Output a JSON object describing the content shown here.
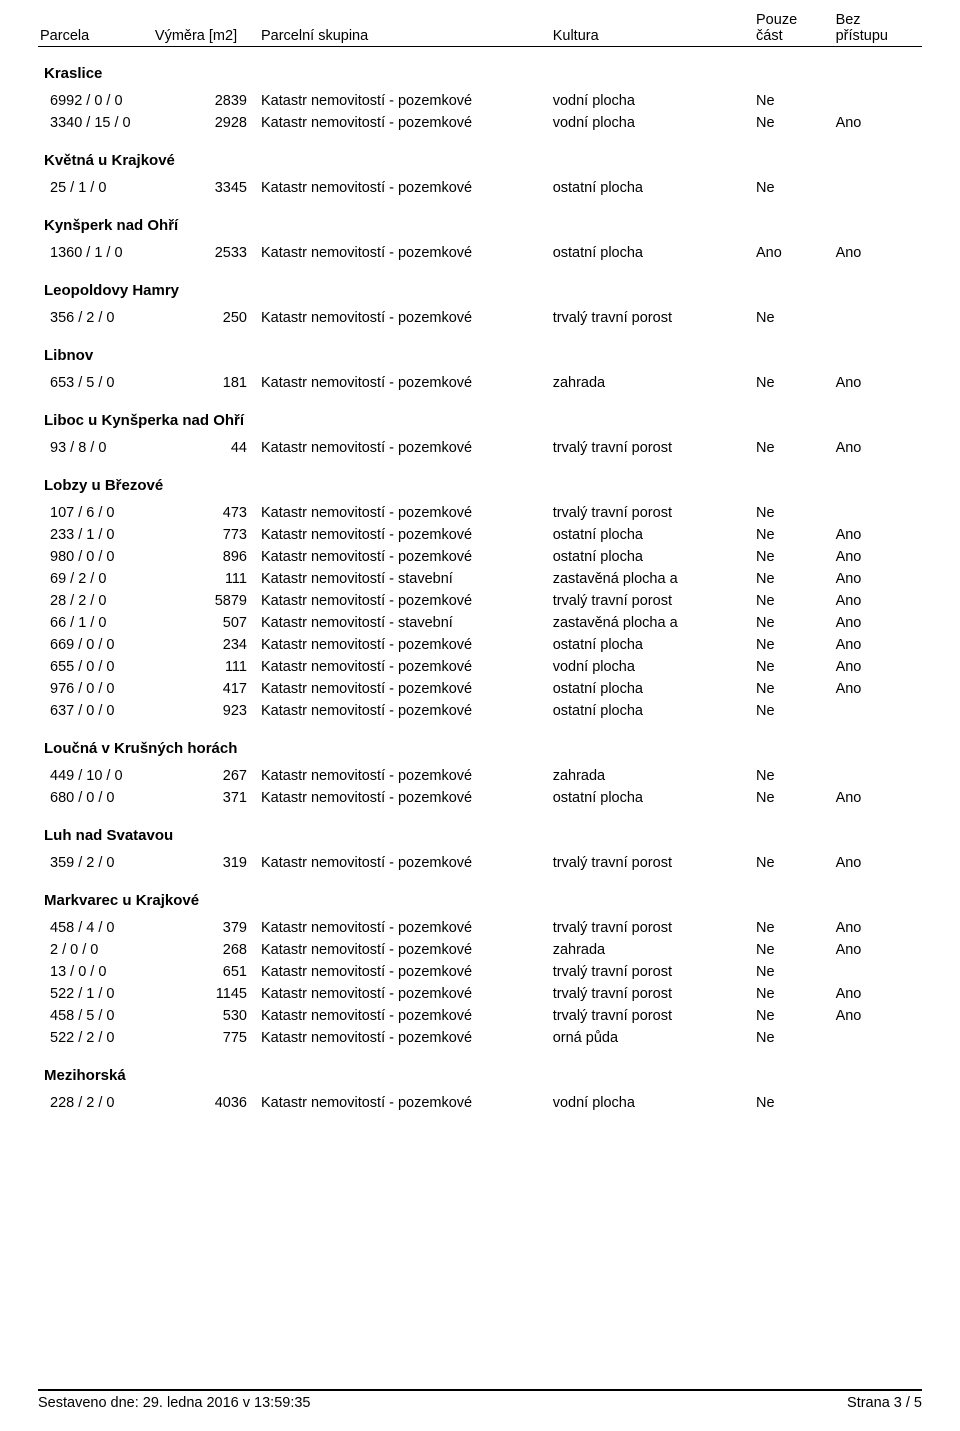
{
  "header": {
    "parcela": "Parcela",
    "vymera": "Výměra [m2]",
    "skupina": "Parcelní skupina",
    "kultura": "Kultura",
    "pouze_l1": "Pouze",
    "pouze_l2": "část",
    "bez_l1": "Bez",
    "bez_l2": "přístupu"
  },
  "groups": [
    {
      "title": "Kraslice",
      "rows": [
        {
          "parcel": "6992 / 0 / 0",
          "area": "2839",
          "group": "Katastr nemovitostí - pozemkové",
          "kult": "vodní plocha",
          "pouze": "Ne",
          "bez": ""
        },
        {
          "parcel": "3340 / 15 / 0",
          "area": "2928",
          "group": "Katastr nemovitostí - pozemkové",
          "kult": "vodní plocha",
          "pouze": "Ne",
          "bez": "Ano"
        }
      ]
    },
    {
      "title": "Květná u Krajkové",
      "rows": [
        {
          "parcel": "25 / 1 / 0",
          "area": "3345",
          "group": "Katastr nemovitostí - pozemkové",
          "kult": "ostatní plocha",
          "pouze": "Ne",
          "bez": ""
        }
      ]
    },
    {
      "title": "Kynšperk nad Ohří",
      "rows": [
        {
          "parcel": "1360 / 1 / 0",
          "area": "2533",
          "group": "Katastr nemovitostí - pozemkové",
          "kult": "ostatní plocha",
          "pouze": "Ano",
          "bez": "Ano"
        }
      ]
    },
    {
      "title": "Leopoldovy Hamry",
      "rows": [
        {
          "parcel": "356 / 2 / 0",
          "area": "250",
          "group": "Katastr nemovitostí - pozemkové",
          "kult": "trvalý travní porost",
          "pouze": "Ne",
          "bez": ""
        }
      ]
    },
    {
      "title": "Libnov",
      "rows": [
        {
          "parcel": "653 / 5 / 0",
          "area": "181",
          "group": "Katastr nemovitostí - pozemkové",
          "kult": "zahrada",
          "pouze": "Ne",
          "bez": "Ano"
        }
      ]
    },
    {
      "title": "Liboc u Kynšperka nad Ohří",
      "rows": [
        {
          "parcel": "93 / 8 / 0",
          "area": "44",
          "group": "Katastr nemovitostí - pozemkové",
          "kult": "trvalý travní porost",
          "pouze": "Ne",
          "bez": "Ano"
        }
      ]
    },
    {
      "title": "Lobzy u Březové",
      "rows": [
        {
          "parcel": "107 / 6 / 0",
          "area": "473",
          "group": "Katastr nemovitostí - pozemkové",
          "kult": "trvalý travní porost",
          "pouze": "Ne",
          "bez": ""
        },
        {
          "parcel": "233 / 1 / 0",
          "area": "773",
          "group": "Katastr nemovitostí - pozemkové",
          "kult": "ostatní plocha",
          "pouze": "Ne",
          "bez": "Ano"
        },
        {
          "parcel": "980 / 0 / 0",
          "area": "896",
          "group": "Katastr nemovitostí - pozemkové",
          "kult": "ostatní plocha",
          "pouze": "Ne",
          "bez": "Ano"
        },
        {
          "parcel": "69 / 2 / 0",
          "area": "111",
          "group": "Katastr nemovitostí - stavební",
          "kult": "zastavěná plocha a",
          "pouze": "Ne",
          "bez": "Ano"
        },
        {
          "parcel": "28 / 2 / 0",
          "area": "5879",
          "group": "Katastr nemovitostí - pozemkové",
          "kult": "trvalý travní porost",
          "pouze": "Ne",
          "bez": "Ano"
        },
        {
          "parcel": "66 / 1 / 0",
          "area": "507",
          "group": "Katastr nemovitostí - stavební",
          "kult": "zastavěná plocha a",
          "pouze": "Ne",
          "bez": "Ano"
        },
        {
          "parcel": "669 / 0 / 0",
          "area": "234",
          "group": "Katastr nemovitostí - pozemkové",
          "kult": "ostatní plocha",
          "pouze": "Ne",
          "bez": "Ano"
        },
        {
          "parcel": "655 / 0 / 0",
          "area": "111",
          "group": "Katastr nemovitostí - pozemkové",
          "kult": "vodní plocha",
          "pouze": "Ne",
          "bez": "Ano"
        },
        {
          "parcel": "976 / 0 / 0",
          "area": "417",
          "group": "Katastr nemovitostí - pozemkové",
          "kult": "ostatní plocha",
          "pouze": "Ne",
          "bez": "Ano"
        },
        {
          "parcel": "637 / 0 / 0",
          "area": "923",
          "group": "Katastr nemovitostí - pozemkové",
          "kult": "ostatní plocha",
          "pouze": "Ne",
          "bez": ""
        }
      ]
    },
    {
      "title": "Loučná v Krušných horách",
      "rows": [
        {
          "parcel": "449 / 10 / 0",
          "area": "267",
          "group": "Katastr nemovitostí - pozemkové",
          "kult": "zahrada",
          "pouze": "Ne",
          "bez": ""
        },
        {
          "parcel": "680 / 0 / 0",
          "area": "371",
          "group": "Katastr nemovitostí - pozemkové",
          "kult": "ostatní plocha",
          "pouze": "Ne",
          "bez": "Ano"
        }
      ]
    },
    {
      "title": "Luh nad Svatavou",
      "rows": [
        {
          "parcel": "359 / 2 / 0",
          "area": "319",
          "group": "Katastr nemovitostí - pozemkové",
          "kult": "trvalý travní porost",
          "pouze": "Ne",
          "bez": "Ano"
        }
      ]
    },
    {
      "title": "Markvarec u Krajkové",
      "rows": [
        {
          "parcel": "458 / 4 / 0",
          "area": "379",
          "group": "Katastr nemovitostí - pozemkové",
          "kult": "trvalý travní porost",
          "pouze": "Ne",
          "bez": "Ano"
        },
        {
          "parcel": "2 / 0 / 0",
          "area": "268",
          "group": "Katastr nemovitostí - pozemkové",
          "kult": "zahrada",
          "pouze": "Ne",
          "bez": "Ano"
        },
        {
          "parcel": "13 / 0 / 0",
          "area": "651",
          "group": "Katastr nemovitostí - pozemkové",
          "kult": "trvalý travní porost",
          "pouze": "Ne",
          "bez": ""
        },
        {
          "parcel": "522 / 1 / 0",
          "area": "1145",
          "group": "Katastr nemovitostí - pozemkové",
          "kult": "trvalý travní porost",
          "pouze": "Ne",
          "bez": "Ano"
        },
        {
          "parcel": "458 / 5 / 0",
          "area": "530",
          "group": "Katastr nemovitostí - pozemkové",
          "kult": "trvalý travní porost",
          "pouze": "Ne",
          "bez": "Ano"
        },
        {
          "parcel": "522 / 2 / 0",
          "area": "775",
          "group": "Katastr nemovitostí - pozemkové",
          "kult": "orná půda",
          "pouze": "Ne",
          "bez": ""
        }
      ]
    },
    {
      "title": "Mezihorská",
      "rows": [
        {
          "parcel": "228 / 2 / 0",
          "area": "4036",
          "group": "Katastr nemovitostí - pozemkové",
          "kult": "vodní plocha",
          "pouze": "Ne",
          "bez": ""
        }
      ]
    }
  ],
  "footer": {
    "left": "Sestaveno dne: 29. ledna 2016 v 13:59:35",
    "right": "Strana 3 / 5"
  }
}
